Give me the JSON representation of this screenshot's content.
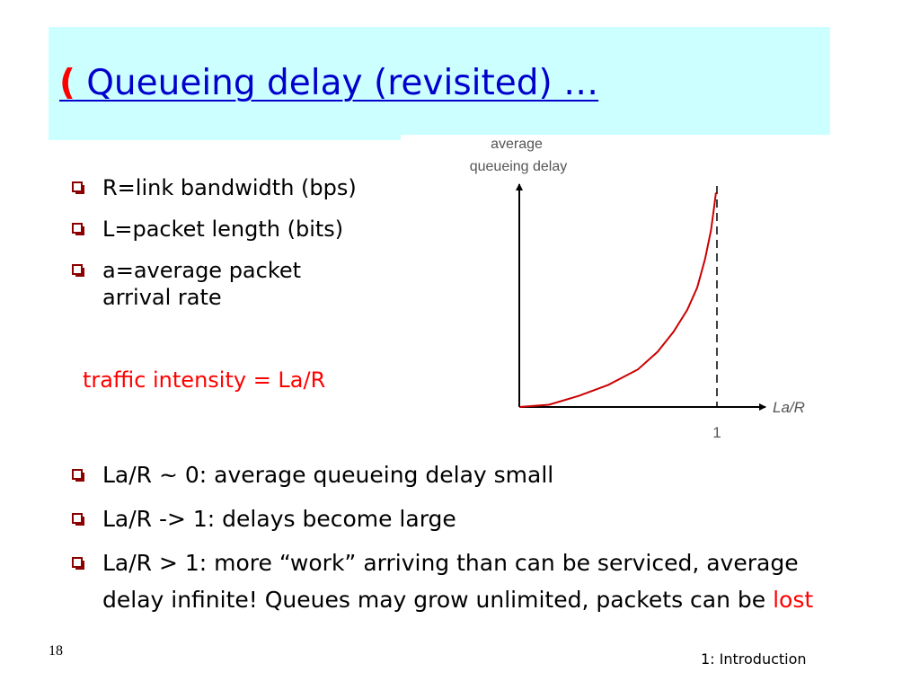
{
  "slide": {
    "title_paren": "(",
    "title_text": " Queueing delay (revisited) …",
    "bullets_top": [
      "R=link bandwidth (bps)",
      "L=packet length (bits)",
      "a=average packet arrival rate"
    ],
    "traffic_intensity": "traffic intensity = La/R",
    "bullets_bottom": [
      "La/R ~ 0: average queueing delay small",
      "La/R -> 1: delays become large",
      "La/R > 1: more “work” arriving than can be serviced, average delay infinite! Queues may grow unlimited, packets can be "
    ],
    "lost_word": "lost",
    "slide_number": "18",
    "footer": "1: Introduction"
  },
  "chart_data": {
    "type": "line",
    "ylabel_lines": [
      "average",
      "queueing delay"
    ],
    "xlabel": "La/R",
    "xtick_labels": [
      "1"
    ],
    "xlim": [
      0,
      1.1
    ],
    "ylim": [
      0,
      1
    ],
    "asymptote_x": 1,
    "series": [
      {
        "x": [
          0,
          0.15,
          0.3,
          0.45,
          0.6,
          0.7,
          0.78,
          0.85,
          0.9,
          0.94,
          0.97,
          0.985,
          0.995
        ],
        "y": [
          0,
          0.01,
          0.05,
          0.1,
          0.17,
          0.25,
          0.34,
          0.44,
          0.54,
          0.67,
          0.8,
          0.9,
          0.97
        ],
        "color": "#cc0000"
      }
    ],
    "axis_color": "#000000",
    "label_color": "#555555"
  }
}
